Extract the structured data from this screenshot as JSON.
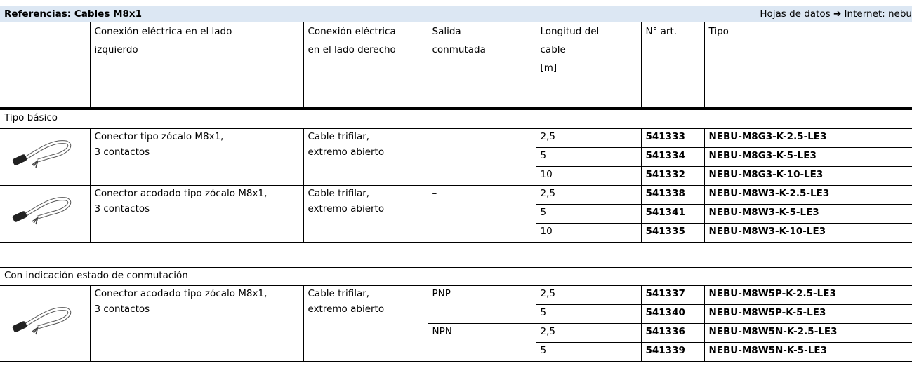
{
  "header": {
    "title": "Referencias: Cables M8x1",
    "link": "Hojas de datos ➔ Internet: nebu"
  },
  "columns": [
    [
      "Conexión eléctrica en el lado",
      "izquierdo"
    ],
    [
      "Conexión eléctrica",
      "en el lado derecho"
    ],
    [
      "Salida",
      "conmutada"
    ],
    [
      "Longitud del",
      "cable",
      "[m]"
    ],
    [
      "N° art."
    ],
    [
      "Tipo"
    ]
  ],
  "sections": [
    {
      "title": "Tipo básico",
      "groups": [
        {
          "connector": [
            "Conector tipo zócalo M8x1,",
            "3 contactos"
          ],
          "cable": [
            "Cable trifilar,",
            "extremo abierto"
          ],
          "outputs": [
            {
              "label": "–",
              "rows": [
                [
                  "2,5",
                  "541333",
                  "NEBU-M8G3-K-2.5-LE3"
                ],
                [
                  "5",
                  "541334",
                  "NEBU-M8G3-K-5-LE3"
                ],
                [
                  "10",
                  "541332",
                  "NEBU-M8G3-K-10-LE3"
                ]
              ]
            }
          ]
        },
        {
          "connector": [
            "Conector acodado tipo zócalo M8x1,",
            "3 contactos"
          ],
          "cable": [
            "Cable trifilar,",
            "extremo abierto"
          ],
          "outputs": [
            {
              "label": "–",
              "rows": [
                [
                  "2,5",
                  "541338",
                  "NEBU-M8W3-K-2.5-LE3"
                ],
                [
                  "5",
                  "541341",
                  "NEBU-M8W3-K-5-LE3"
                ],
                [
                  "10",
                  "541335",
                  "NEBU-M8W3-K-10-LE3"
                ]
              ]
            }
          ]
        }
      ]
    },
    {
      "title": "Con indicación estado de conmutación",
      "groups": [
        {
          "connector": [
            "Conector acodado tipo zócalo M8x1,",
            "3 contactos"
          ],
          "cable": [
            "Cable trifilar,",
            "extremo abierto"
          ],
          "outputs": [
            {
              "label": "PNP",
              "rows": [
                [
                  "2,5",
                  "541337",
                  "NEBU-M8W5P-K-2.5-LE3"
                ],
                [
                  "5",
                  "541340",
                  "NEBU-M8W5P-K-5-LE3"
                ]
              ]
            },
            {
              "label": "NPN",
              "rows": [
                [
                  "2,5",
                  "541336",
                  "NEBU-M8W5N-K-2.5-LE3"
                ],
                [
                  "5",
                  "541339",
                  "NEBU-M8W5N-K-5-LE3"
                ]
              ]
            }
          ]
        }
      ]
    }
  ]
}
